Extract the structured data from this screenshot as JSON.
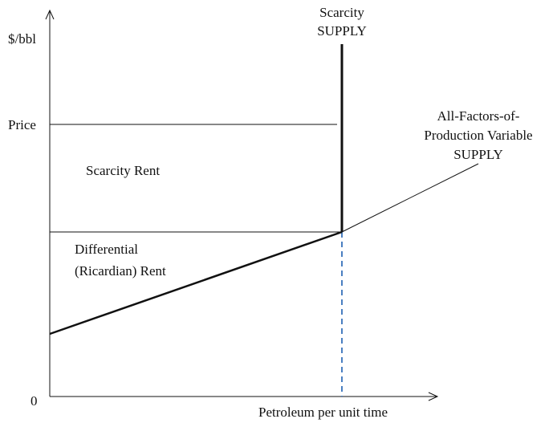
{
  "axes": {
    "y_label": "$/bbl",
    "x_label": "Petroleum per unit time",
    "origin_label": "0",
    "price_tick_label": "Price"
  },
  "regions": {
    "scarcity_rent": "Scarcity Rent",
    "differential_rent_line1": "Differential",
    "differential_rent_line2": "(Ricardian) Rent"
  },
  "curves": {
    "scarcity_supply_line1": "Scarcity",
    "scarcity_supply_line2": "SUPPLY",
    "all_factors_line1": "All-Factors-of-",
    "all_factors_line2": "Production Variable",
    "all_factors_line3": "SUPPLY"
  },
  "colors": {
    "axis": "#111111",
    "curve": "#111111",
    "dashed_drop_line": "#4a7fc1"
  }
}
